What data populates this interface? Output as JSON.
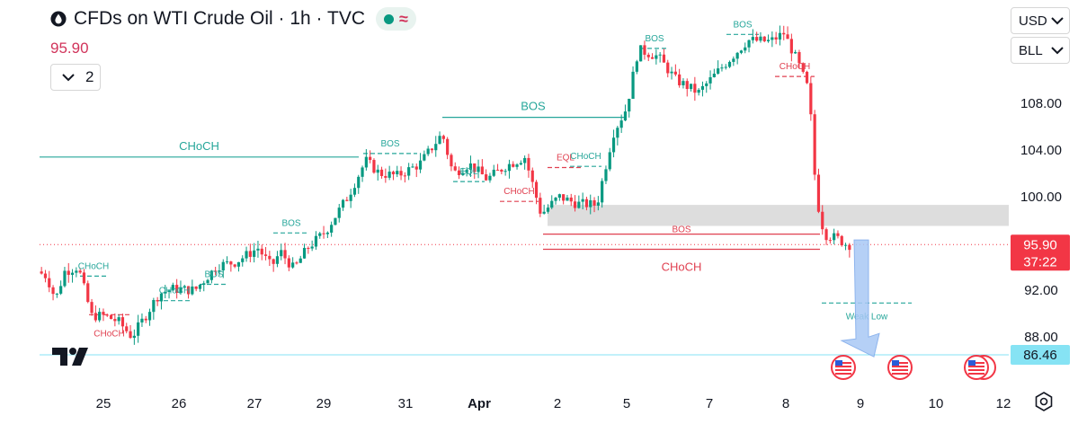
{
  "header": {
    "title": "CFDs on WTI Crude Oil · 1h · TVC",
    "price": "95.90",
    "legend_count": "2",
    "icons": [
      "drop-icon",
      "status-dot-icon",
      "wave-icon"
    ]
  },
  "scale_controls": {
    "currency": "USD",
    "unit": "BLL"
  },
  "colors": {
    "up": "#089981",
    "down": "#f23645",
    "structure_green": "#26a69a",
    "structure_red": "#e04050",
    "zone_gray": "#d9d9d9",
    "last_price_bg": "#f23645",
    "low_label_bg": "#86e3f4"
  },
  "chart_data": {
    "type": "candlestick",
    "symbol": "CFDs on WTI Crude Oil",
    "interval": "1h",
    "x_tick_labels": [
      "25",
      "26",
      "27",
      "29",
      "31",
      "Apr",
      "2",
      "5",
      "7",
      "8",
      "9",
      "10",
      "12"
    ],
    "y_tick_labels": [
      "108.00",
      "104.00",
      "100.00",
      "92.00",
      "88.00"
    ],
    "ylim": [
      84.2,
      114.2
    ],
    "last_price": 95.9,
    "countdown": "37:22",
    "low_line_price": 86.46,
    "support_zone": [
      97.5,
      99.3
    ],
    "price_path": [
      {
        "t": 0,
        "p": 93.6
      },
      {
        "t": 10,
        "p": 93.2
      },
      {
        "t": 20,
        "p": 91.2
      },
      {
        "t": 30,
        "p": 93.6
      },
      {
        "t": 45,
        "p": 94.0
      },
      {
        "t": 60,
        "p": 89.8
      },
      {
        "t": 75,
        "p": 89.8
      },
      {
        "t": 90,
        "p": 89.3
      },
      {
        "t": 105,
        "p": 88.0
      },
      {
        "t": 120,
        "p": 89.8
      },
      {
        "t": 135,
        "p": 91.7
      },
      {
        "t": 150,
        "p": 92.1
      },
      {
        "t": 175,
        "p": 92.0
      },
      {
        "t": 200,
        "p": 94.1
      },
      {
        "t": 220,
        "p": 94.4
      },
      {
        "t": 245,
        "p": 95.6
      },
      {
        "t": 260,
        "p": 94.0
      },
      {
        "t": 270,
        "p": 95.3
      },
      {
        "t": 285,
        "p": 93.8
      },
      {
        "t": 300,
        "p": 95.6
      },
      {
        "t": 320,
        "p": 97.0
      },
      {
        "t": 345,
        "p": 100.0
      },
      {
        "t": 365,
        "p": 103.1
      },
      {
        "t": 380,
        "p": 102.0
      },
      {
        "t": 400,
        "p": 101.8
      },
      {
        "t": 425,
        "p": 102.8
      },
      {
        "t": 450,
        "p": 105.4
      },
      {
        "t": 462,
        "p": 102.0
      },
      {
        "t": 480,
        "p": 102.8
      },
      {
        "t": 500,
        "p": 101.5
      },
      {
        "t": 520,
        "p": 102.6
      },
      {
        "t": 542,
        "p": 103.4
      },
      {
        "t": 560,
        "p": 98.5
      },
      {
        "t": 580,
        "p": 100.0
      },
      {
        "t": 600,
        "p": 99.4
      },
      {
        "t": 622,
        "p": 99.3
      },
      {
        "t": 640,
        "p": 105.4
      },
      {
        "t": 655,
        "p": 107.6
      },
      {
        "t": 668,
        "p": 112.6
      },
      {
        "t": 690,
        "p": 112.0
      },
      {
        "t": 710,
        "p": 110.0
      },
      {
        "t": 735,
        "p": 108.9
      },
      {
        "t": 760,
        "p": 111.0
      },
      {
        "t": 790,
        "p": 113.4
      },
      {
        "t": 815,
        "p": 113.3
      },
      {
        "t": 830,
        "p": 114.0
      },
      {
        "t": 845,
        "p": 111.6
      },
      {
        "t": 858,
        "p": 109.0
      },
      {
        "t": 866,
        "p": 100.0
      },
      {
        "t": 875,
        "p": 96.8
      },
      {
        "t": 890,
        "p": 96.4
      },
      {
        "t": 900,
        "p": 95.9
      }
    ],
    "structure_labels": [
      {
        "text": "CHoCH",
        "color": "green",
        "price": 103.4,
        "line_start": 0,
        "line_end": 355
      },
      {
        "text": "BOS",
        "color": "green",
        "price": 106.8,
        "line_start": 448,
        "line_end": 650
      },
      {
        "text": "BOS",
        "color": "green",
        "price": 96.9,
        "line_start": 260,
        "line_end": 300
      },
      {
        "text": "BOS",
        "color": "green",
        "price": 103.7,
        "line_start": 360,
        "line_end": 420
      },
      {
        "text": "BOS",
        "color": "green",
        "price": 112.7,
        "line_start": 668,
        "line_end": 700
      },
      {
        "text": "BOS",
        "color": "green",
        "price": 113.9,
        "line_start": 764,
        "line_end": 800
      },
      {
        "text": "BOS",
        "color": "green",
        "price": 92.5,
        "line_start": 178,
        "line_end": 210
      },
      {
        "text": "CHoCH",
        "color": "green",
        "price": 93.2,
        "line_start": 45,
        "line_end": 75
      },
      {
        "text": "CHoCH",
        "color": "green",
        "price": 91.1,
        "line_start": 130,
        "line_end": 170
      },
      {
        "text": "CHoCH",
        "color": "green",
        "price": 102.6,
        "line_start": 590,
        "line_end": 625
      },
      {
        "text": "EQL",
        "color": "green",
        "price": 101.3,
        "line_start": 460,
        "line_end": 495
      },
      {
        "text": "EQL",
        "color": "red",
        "price": 102.5,
        "line_start": 565,
        "line_end": 605
      },
      {
        "text": "CHoCH",
        "color": "red",
        "price": 89.9,
        "line_start": 55,
        "line_end": 100
      },
      {
        "text": "CHoCH",
        "color": "red",
        "price": 99.6,
        "line_start": 512,
        "line_end": 555
      },
      {
        "text": "CHoCH",
        "color": "red",
        "price": 110.3,
        "line_start": 818,
        "line_end": 862
      },
      {
        "text": "BOS",
        "color": "red",
        "price": 96.8,
        "line_start": 560,
        "line_end": 868
      },
      {
        "text": "CHoCH",
        "color": "red",
        "price": 95.5,
        "line_start": 560,
        "line_end": 868
      },
      {
        "text": "Weak Low",
        "color": "green",
        "price": 90.9,
        "line_start": 870,
        "line_end": 970
      }
    ],
    "projection": {
      "from_price": 96.3,
      "to_price": 86.6
    },
    "event_markers": [
      "us-flag-icon",
      "us-flag-icon",
      "us-flag-icon"
    ]
  },
  "footer": {
    "logo": "TradingView",
    "settings_icon": "gear-icon"
  }
}
